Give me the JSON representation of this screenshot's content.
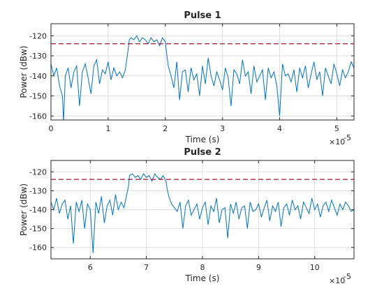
{
  "chart_data": [
    {
      "type": "line",
      "title": "Pulse 1",
      "xlabel": "Time (s)",
      "ylabel": "Power (dBw)",
      "xlim": [
        0,
        5.3
      ],
      "ylim": [
        -162,
        -114
      ],
      "x_exponent_label": "×10",
      "x_exponent": "-5",
      "xticks": [
        0,
        1,
        2,
        3,
        4,
        5
      ],
      "yticks": [
        -160,
        -150,
        -140,
        -130,
        -120
      ],
      "grid": true,
      "line_color": "#0072BD",
      "threshold": {
        "value": -124,
        "color": "#A2142F",
        "style": "dashed"
      },
      "series": [
        {
          "x": [
            0,
            0.05,
            0.1,
            0.15,
            0.2,
            0.22,
            0.25,
            0.3,
            0.35,
            0.4,
            0.45,
            0.5,
            0.55,
            0.6,
            0.65,
            0.7,
            0.75,
            0.8,
            0.85,
            0.9,
            0.95,
            1.0,
            1.05,
            1.1,
            1.15,
            1.2,
            1.25,
            1.3,
            1.35,
            1.37,
            1.4,
            1.45,
            1.5,
            1.55,
            1.6,
            1.65,
            1.7,
            1.75,
            1.8,
            1.85,
            1.9,
            1.95,
            2.0,
            2.02,
            2.05,
            2.1,
            2.15,
            2.2,
            2.25,
            2.3,
            2.35,
            2.4,
            2.45,
            2.5,
            2.55,
            2.6,
            2.65,
            2.7,
            2.75,
            2.8,
            2.85,
            2.9,
            2.95,
            3.0,
            3.05,
            3.1,
            3.15,
            3.2,
            3.25,
            3.3,
            3.35,
            3.4,
            3.45,
            3.5,
            3.55,
            3.6,
            3.65,
            3.7,
            3.75,
            3.8,
            3.85,
            3.9,
            3.95,
            4.0,
            4.05,
            4.1,
            4.15,
            4.2,
            4.25,
            4.3,
            4.35,
            4.4,
            4.45,
            4.5,
            4.55,
            4.6,
            4.65,
            4.7,
            4.75,
            4.8,
            4.85,
            4.9,
            4.95,
            5.0,
            5.05,
            5.1,
            5.15,
            5.2,
            5.25,
            5.3
          ],
          "y": [
            -134,
            -140,
            -136,
            -145,
            -150,
            -163,
            -140,
            -136,
            -146,
            -138,
            -135,
            -155,
            -138,
            -134,
            -141,
            -149,
            -135,
            -132,
            -144,
            -137,
            -139,
            -133,
            -142,
            -136,
            -140,
            -138,
            -141,
            -137,
            -127,
            -122,
            -121,
            -122,
            -120,
            -123,
            -121,
            -122,
            -124,
            -121,
            -123,
            -122,
            -125,
            -121,
            -123,
            -128,
            -135,
            -140,
            -146,
            -133,
            -152,
            -138,
            -137,
            -148,
            -136,
            -142,
            -139,
            -150,
            -135,
            -144,
            -131,
            -140,
            -145,
            -138,
            -142,
            -147,
            -136,
            -141,
            -155,
            -137,
            -139,
            -144,
            -132,
            -140,
            -138,
            -149,
            -135,
            -143,
            -140,
            -137,
            -152,
            -136,
            -141,
            -138,
            -145,
            -160,
            -134,
            -140,
            -139,
            -143,
            -137,
            -148,
            -136,
            -141,
            -135,
            -146,
            -139,
            -133,
            -142,
            -138,
            -150,
            -136,
            -140,
            -144,
            -134,
            -139,
            -145,
            -137,
            -141,
            -138,
            -133,
            -136
          ]
        }
      ]
    },
    {
      "type": "line",
      "title": "Pulse 2",
      "xlabel": "Time (s)",
      "ylabel": "Power (dBw)",
      "xlim": [
        5.3,
        10.7
      ],
      "ylim": [
        -166,
        -114
      ],
      "x_exponent_label": "×10",
      "x_exponent": "-5",
      "xticks": [
        6,
        7,
        8,
        9,
        10
      ],
      "yticks": [
        -160,
        -150,
        -140,
        -130,
        -120
      ],
      "grid": true,
      "line_color": "#0072BD",
      "threshold": {
        "value": -124,
        "color": "#A2142F",
        "style": "dashed"
      },
      "series": [
        {
          "x": [
            5.3,
            5.35,
            5.4,
            5.45,
            5.5,
            5.55,
            5.6,
            5.65,
            5.7,
            5.75,
            5.8,
            5.85,
            5.9,
            5.95,
            6.0,
            6.05,
            6.1,
            6.15,
            6.2,
            6.25,
            6.3,
            6.35,
            6.4,
            6.45,
            6.5,
            6.55,
            6.6,
            6.65,
            6.68,
            6.7,
            6.75,
            6.8,
            6.85,
            6.9,
            6.95,
            7.0,
            7.05,
            7.1,
            7.15,
            7.2,
            7.25,
            7.3,
            7.35,
            7.37,
            7.4,
            7.45,
            7.5,
            7.55,
            7.6,
            7.65,
            7.7,
            7.75,
            7.8,
            7.85,
            7.9,
            7.95,
            8.0,
            8.05,
            8.1,
            8.15,
            8.2,
            8.25,
            8.3,
            8.35,
            8.4,
            8.45,
            8.5,
            8.55,
            8.6,
            8.65,
            8.7,
            8.75,
            8.8,
            8.85,
            8.9,
            8.95,
            9.0,
            9.05,
            9.1,
            9.15,
            9.2,
            9.25,
            9.3,
            9.35,
            9.4,
            9.45,
            9.5,
            9.55,
            9.6,
            9.65,
            9.7,
            9.75,
            9.8,
            9.85,
            9.9,
            9.95,
            10.0,
            10.05,
            10.1,
            10.15,
            10.2,
            10.25,
            10.3,
            10.35,
            10.4,
            10.45,
            10.5,
            10.55,
            10.6,
            10.65,
            10.7
          ],
          "y": [
            -136,
            -140,
            -134,
            -142,
            -137,
            -135,
            -145,
            -138,
            -158,
            -136,
            -141,
            -135,
            -150,
            -137,
            -140,
            -163,
            -136,
            -142,
            -133,
            -147,
            -138,
            -135,
            -143,
            -132,
            -140,
            -136,
            -139,
            -132,
            -128,
            -122,
            -121,
            -123,
            -122,
            -124,
            -121,
            -123,
            -122,
            -125,
            -121,
            -123,
            -124,
            -122,
            -125,
            -129,
            -133,
            -137,
            -139,
            -141,
            -136,
            -150,
            -138,
            -135,
            -143,
            -140,
            -137,
            -145,
            -139,
            -136,
            -148,
            -138,
            -141,
            -134,
            -147,
            -140,
            -139,
            -155,
            -137,
            -142,
            -136,
            -145,
            -139,
            -138,
            -150,
            -136,
            -141,
            -140,
            -137,
            -144,
            -139,
            -135,
            -146,
            -138,
            -141,
            -136,
            -149,
            -139,
            -137,
            -143,
            -135,
            -140,
            -138,
            -145,
            -136,
            -139,
            -142,
            -134,
            -140,
            -137,
            -144,
            -138,
            -136,
            -141,
            -135,
            -139,
            -143,
            -137,
            -140,
            -136,
            -138,
            -141,
            -140
          ]
        }
      ]
    }
  ]
}
